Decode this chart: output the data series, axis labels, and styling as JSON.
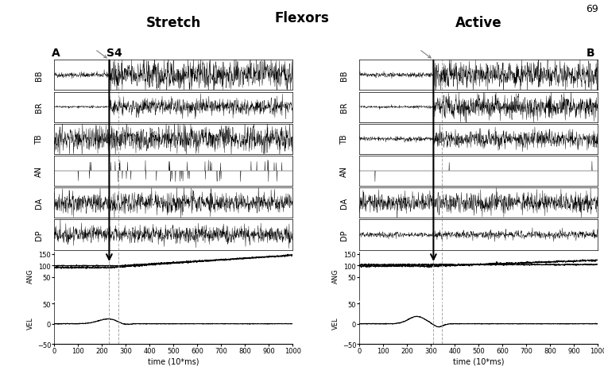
{
  "title_left": "Stretch",
  "title_center": "Flexors",
  "title_right": "Active",
  "page_num": "69",
  "label_A": "A",
  "label_S4": "S4",
  "label_B": "B",
  "emg_channels": [
    "BB",
    "BR",
    "TB",
    "AN",
    "DA",
    "DP"
  ],
  "xmin": 0,
  "xmax": 1000,
  "xticks": [
    0,
    100,
    200,
    300,
    400,
    500,
    600,
    700,
    800,
    900,
    1000
  ],
  "xlabel": "time (10*ms)",
  "ang_ylim": [
    -50,
    160
  ],
  "ang_yticks": [
    50,
    100,
    150
  ],
  "vel_ylim": [
    -50,
    55
  ],
  "vel_yticks": [
    -50,
    0,
    50
  ],
  "trigger_A": 230,
  "trigger_B": 310,
  "trigger2_A": 270,
  "trigger2_B": 345,
  "bg_color": "#ffffff",
  "seed": 42
}
